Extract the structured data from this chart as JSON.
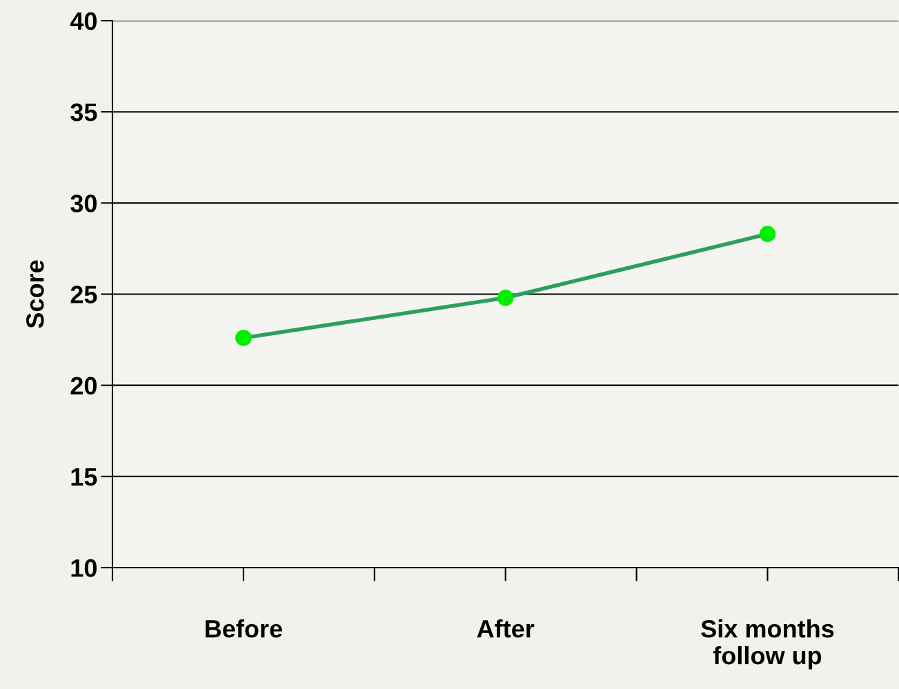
{
  "chart_data": {
    "type": "line",
    "ylabel": "Score",
    "categories": [
      "Before",
      "After",
      "Six months\nfollow up"
    ],
    "series": [
      {
        "color": "#2e9e5e",
        "values": [
          22.6,
          24.8,
          28.3
        ]
      }
    ],
    "ylim": [
      10,
      40
    ],
    "yticks": [
      10,
      15,
      20,
      25,
      30,
      35,
      40
    ],
    "grid": "y",
    "marker": "circle",
    "line_style": "solid",
    "legend": false
  }
}
